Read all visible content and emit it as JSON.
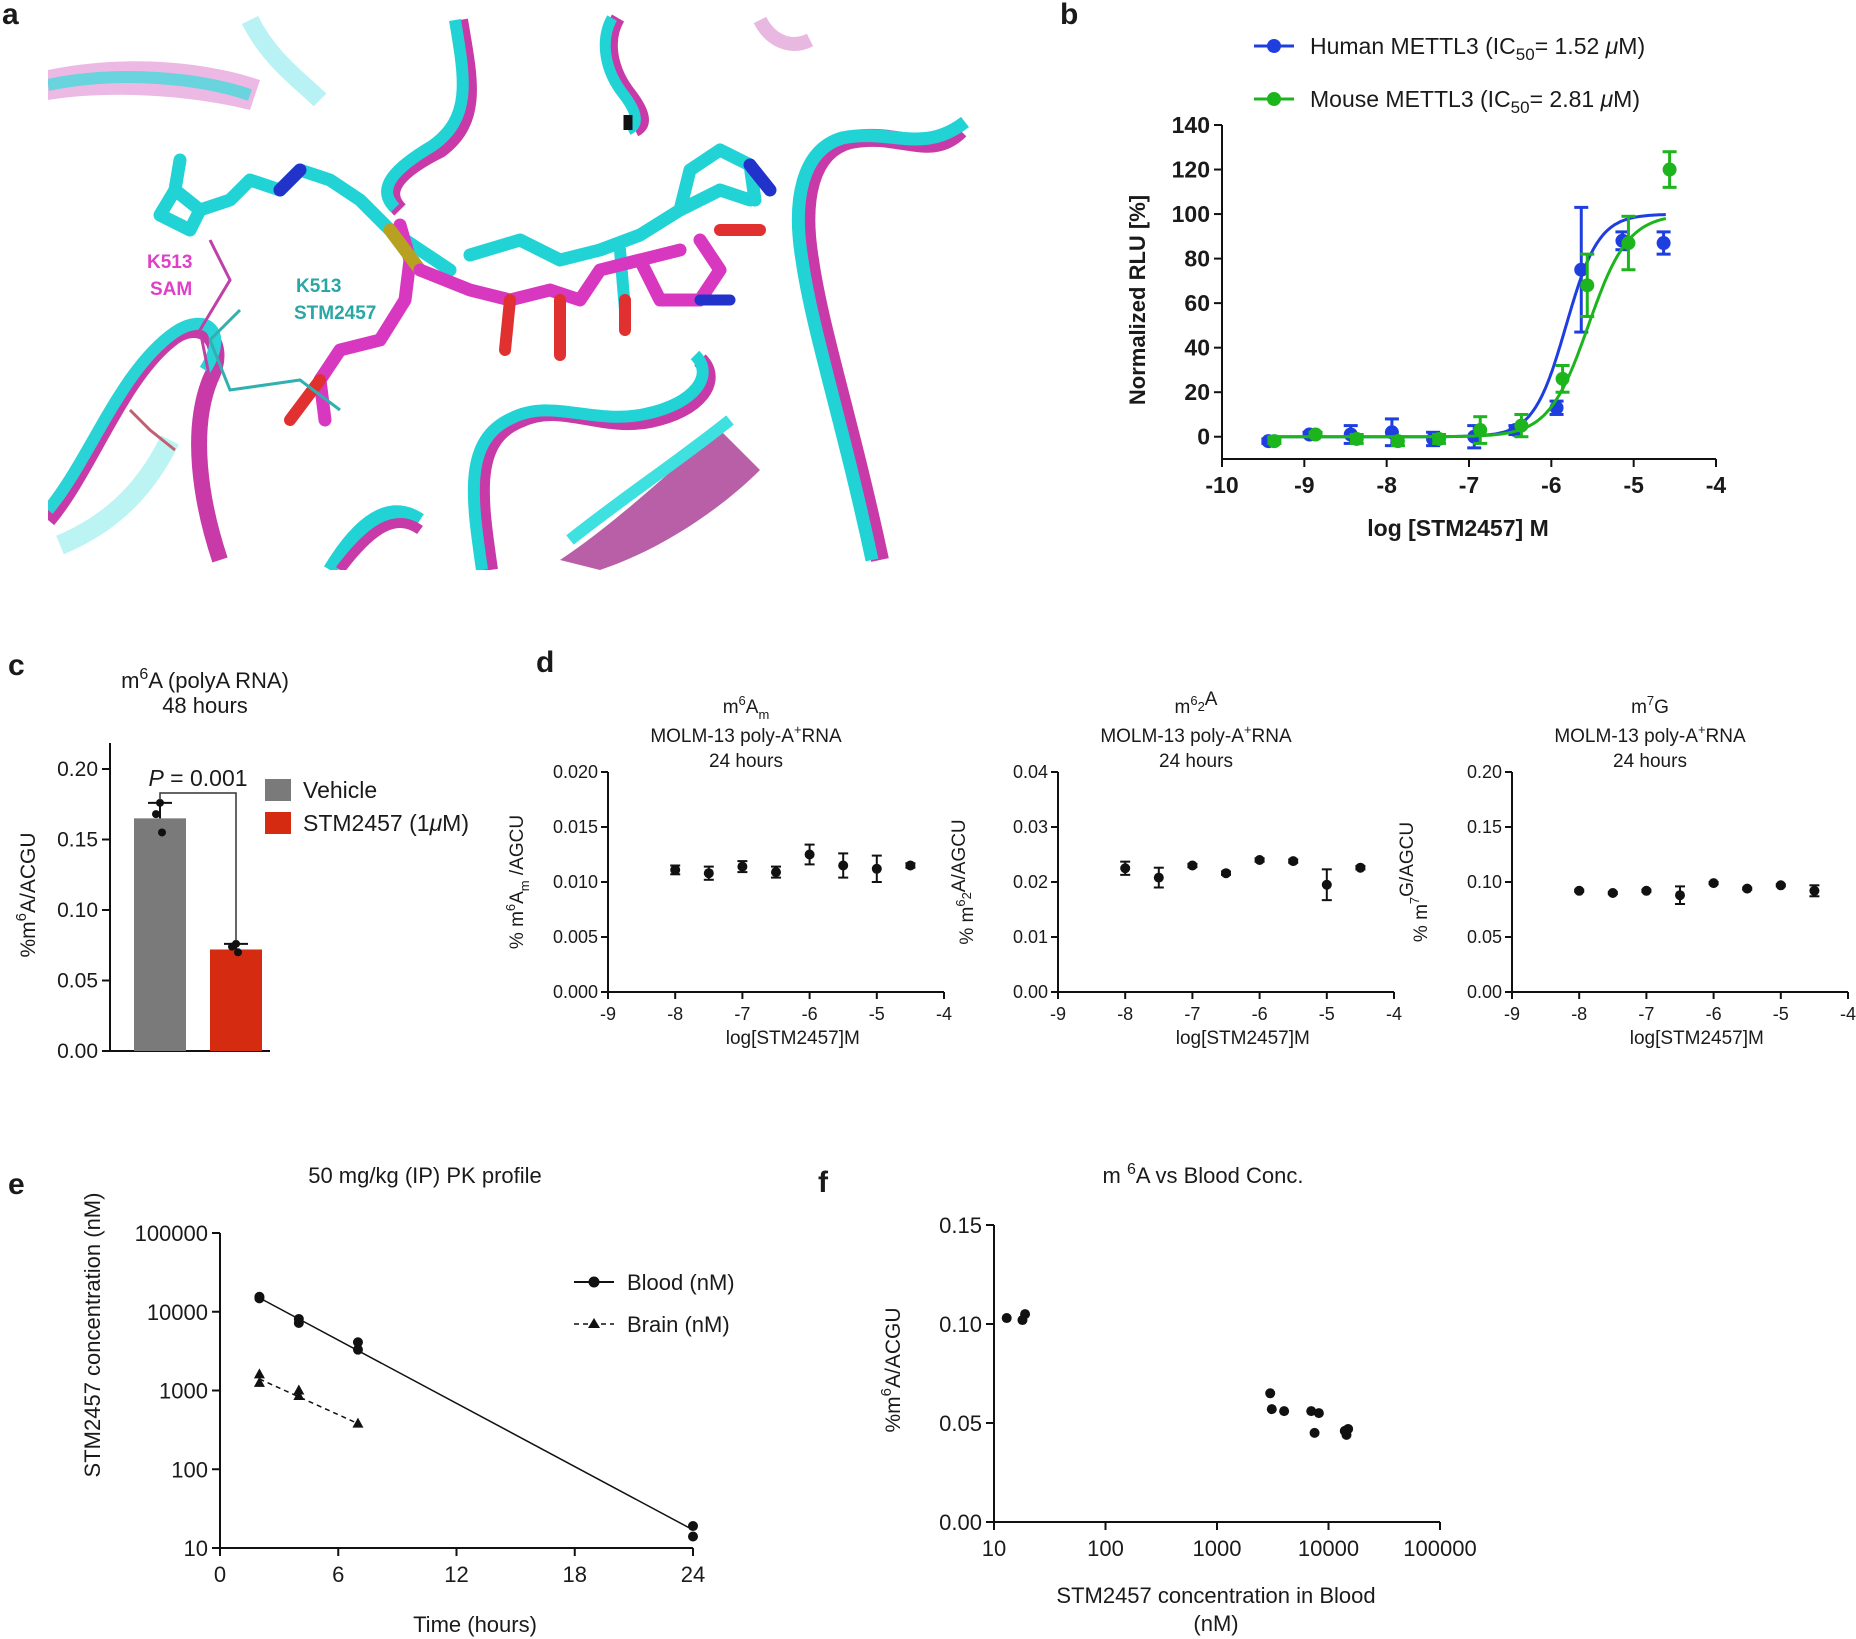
{
  "figure": {
    "panel_letters": {
      "a": "a",
      "b": "b",
      "c": "c",
      "d": "d",
      "e": "e",
      "f": "f"
    }
  },
  "structure_panel": {
    "labels": [
      {
        "id": "k513_sam_1",
        "text": "K513",
        "color": "#e040c8"
      },
      {
        "id": "k513_sam_2",
        "text": "SAM",
        "color": "#e040c8"
      },
      {
        "id": "k513_stm_1",
        "text": "K513",
        "color": "#2aa6a6"
      },
      {
        "id": "k513_stm_2",
        "text": "STM2457",
        "color": "#2aa6a6"
      }
    ],
    "colors": {
      "cyan": "#22d3d6",
      "magenta": "#d038b8",
      "background": "#ffffff"
    }
  },
  "chart_data": [
    {
      "id": "b",
      "type": "line",
      "xlabel": "log [STM2457] M",
      "ylabel": "Normalized RLU [%]",
      "xlim": [
        -10,
        -4
      ],
      "ylim": [
        -10,
        140
      ],
      "xticks": [
        -10,
        -9,
        -8,
        -7,
        -6,
        -5,
        -4
      ],
      "yticks": [
        0,
        20,
        40,
        60,
        80,
        100,
        120,
        140
      ],
      "legend": [
        {
          "pre": "Human METTL3 (IC",
          "sub": "50",
          "post": "= 1.52 ",
          "mu": "μ",
          "unit": "M)"
        },
        {
          "pre": "Mouse METTL3 (IC",
          "sub": "50",
          "post": "= 2.81 ",
          "mu": "μ",
          "unit": "M)"
        }
      ],
      "series": [
        {
          "name": "Human METTL3",
          "color": "#1f3ee0",
          "ic50_log": -5.82,
          "top": 100,
          "bottom": 0,
          "hill": 2.2,
          "x": [
            -9.4,
            -8.9,
            -8.4,
            -7.9,
            -7.4,
            -6.9,
            -6.4,
            -5.9,
            -5.6,
            -5.1,
            -4.6
          ],
          "y": [
            -2,
            1,
            1,
            2,
            -1,
            0,
            3,
            13,
            75,
            88,
            87
          ],
          "err": [
            1,
            1,
            4,
            6,
            3,
            5,
            2,
            3,
            28,
            4,
            5
          ]
        },
        {
          "name": "Mouse METTL3",
          "color": "#1db51d",
          "ic50_log": -5.55,
          "top": 100,
          "bottom": 0,
          "hill": 1.8,
          "x": [
            -9.4,
            -8.9,
            -8.4,
            -7.9,
            -7.4,
            -6.9,
            -6.4,
            -5.9,
            -5.6,
            -5.1,
            -4.6
          ],
          "y": [
            -2,
            1,
            -1,
            -2,
            -1,
            3,
            5,
            26,
            68,
            87,
            120
          ],
          "err": [
            1,
            1,
            2,
            2,
            2,
            6,
            5,
            6,
            14,
            12,
            8
          ]
        }
      ]
    },
    {
      "id": "c",
      "type": "bar",
      "title": {
        "pre": "m",
        "sup": "6",
        "post": "A (polyA RNA)",
        "line2": "48 hours"
      },
      "ylabel": {
        "pre": "%m",
        "sup": "6",
        "post": "A/ACGU"
      },
      "ylim": [
        0,
        0.2
      ],
      "yticks": [
        "0.00",
        "0.05",
        "0.10",
        "0.15",
        "0.20"
      ],
      "categories": [
        "Vehicle",
        "STM2457 (1μM)"
      ],
      "legend": [
        {
          "text": "Vehicle"
        },
        {
          "pre": "STM2457 (1",
          "mu": "μ",
          "post": "M)"
        }
      ],
      "colors": [
        "#7a7a7a",
        "#d42b11"
      ],
      "values": [
        0.165,
        0.072
      ],
      "err": [
        0.011,
        0.004
      ],
      "points": [
        [
          0.176,
          0.168,
          0.155
        ],
        [
          0.076,
          0.074,
          0.07
        ]
      ],
      "annotation": {
        "p": "P",
        "eq": " = 0.001"
      }
    },
    {
      "id": "d1",
      "type": "scatter",
      "title": {
        "l1pre": "m",
        "l1sup": "6",
        "l1mid": "A",
        "l1sub": "m",
        "l2pre": "MOLM-13 poly-A",
        "l2sup": "+",
        "l2post": "RNA",
        "l3": "24 hours"
      },
      "ylabel": {
        "pre": "% m",
        "sup": "6",
        "mid": "A",
        "sub": "m",
        "post": " /AGCU"
      },
      "xlabel": "log[STM2457]M",
      "xlim": [
        -9,
        -4
      ],
      "xticks": [
        "-9",
        "-8",
        "-7",
        "-6",
        "-5",
        "-4"
      ],
      "ylim": [
        0,
        0.02
      ],
      "yticks": [
        "0.000",
        "0.005",
        "0.010",
        "0.015",
        "0.020"
      ],
      "x": [
        -8,
        -7.5,
        -7,
        -6.5,
        -6,
        -5.5,
        -5,
        -4.5
      ],
      "y": [
        0.0111,
        0.0108,
        0.0114,
        0.0109,
        0.0125,
        0.0115,
        0.0112,
        0.0115
      ],
      "err": [
        0.0004,
        0.0006,
        0.0005,
        0.0005,
        0.0009,
        0.0011,
        0.0012,
        0.0002
      ]
    },
    {
      "id": "d2",
      "type": "scatter",
      "title": {
        "l1pre": "m",
        "l1sup": "6",
        "l1mid": "",
        "l1sub": "2",
        "l1post": "A",
        "l2pre": "MOLM-13 poly-A",
        "l2sup": "+",
        "l2post": "RNA",
        "l3": "24 hours"
      },
      "ylabel": {
        "pre": "% m",
        "sup": "6",
        "mid": "",
        "sub": "2",
        "post": "A/AGCU"
      },
      "xlabel": "log[STM2457]M",
      "xlim": [
        -9,
        -4
      ],
      "xticks": [
        "-9",
        "-8",
        "-7",
        "-6",
        "-5",
        "-4"
      ],
      "ylim": [
        0,
        0.04
      ],
      "yticks": [
        "0.00",
        "0.01",
        "0.02",
        "0.03",
        "0.04"
      ],
      "x": [
        -8,
        -7.5,
        -7,
        -6.5,
        -6,
        -5.5,
        -5,
        -4.5
      ],
      "y": [
        0.0225,
        0.0208,
        0.023,
        0.0216,
        0.024,
        0.0238,
        0.0195,
        0.0226
      ],
      "err": [
        0.0012,
        0.0018,
        0.0003,
        0.0003,
        0.0003,
        0.0003,
        0.0028,
        0.0003
      ]
    },
    {
      "id": "d3",
      "type": "scatter",
      "title": {
        "l1pre": "m",
        "l1sup": "7",
        "l1mid": "G",
        "l1sub": "",
        "l2pre": "MOLM-13 poly-A",
        "l2sup": "+",
        "l2post": "RNA",
        "l3": "24 hours"
      },
      "ylabel": {
        "pre": "% m",
        "sup": "7",
        "mid": "",
        "sub": "",
        "post": "G/AGCU"
      },
      "xlabel": "log[STM2457]M",
      "xlim": [
        -9,
        -4
      ],
      "xticks": [
        "-9",
        "-8",
        "-7",
        "-6",
        "-5",
        "-4"
      ],
      "ylim": [
        0,
        0.2
      ],
      "yticks": [
        "0.00",
        "0.05",
        "0.10",
        "0.15",
        "0.20"
      ],
      "x": [
        -8,
        -7.5,
        -7,
        -6.5,
        -6,
        -5.5,
        -5,
        -4.5
      ],
      "y": [
        0.092,
        0.09,
        0.092,
        0.088,
        0.099,
        0.094,
        0.097,
        0.092
      ],
      "err": [
        0.001,
        0.001,
        0.001,
        0.008,
        0.001,
        0.001,
        0.001,
        0.005
      ]
    },
    {
      "id": "e",
      "type": "line",
      "title": "50 mg/kg (IP) PK profile",
      "xlabel": "Time (hours)",
      "ylabel": "STM2457 concentration (nM)",
      "xlim": [
        0,
        24
      ],
      "xticks": [
        "0",
        "6",
        "12",
        "18",
        "24"
      ],
      "ylim_log": [
        10,
        100000
      ],
      "yticks": [
        "10",
        "100",
        "1000",
        "10000",
        "100000"
      ],
      "legend": [
        "Blood (nM)",
        "Brain (nM)"
      ],
      "series": [
        {
          "name": "Blood (nM)",
          "marker": "circle",
          "dashed": false,
          "points": [
            [
              2,
              15500
            ],
            [
              2,
              14800
            ],
            [
              4,
              8100
            ],
            [
              4,
              7200
            ],
            [
              7,
              4100
            ],
            [
              7,
              3300
            ],
            [
              24,
              19
            ],
            [
              24,
              14
            ]
          ],
          "fit": [
            [
              2,
              15000
            ],
            [
              24,
              17
            ]
          ]
        },
        {
          "name": "Brain (nM)",
          "marker": "triangle",
          "dashed": true,
          "points": [
            [
              2,
              1600
            ],
            [
              2,
              1250
            ],
            [
              4,
              1000
            ],
            [
              4,
              850
            ],
            [
              7,
              380
            ]
          ],
          "fit": [
            [
              2,
              1400
            ],
            [
              7,
              380
            ]
          ]
        }
      ]
    },
    {
      "id": "f",
      "type": "scatter",
      "title": {
        "pre": "m ",
        "sup": "6",
        "post": "A vs Blood Conc."
      },
      "xlabel": [
        "STM2457 concentration in Blood",
        "(nM)"
      ],
      "ylabel": {
        "pre": "%m",
        "sup": "6",
        "post": "A/ACGU"
      },
      "xlim_log": [
        10,
        100000
      ],
      "xticks": [
        "10",
        "100",
        "1000",
        "10000",
        "100000"
      ],
      "ylim": [
        0,
        0.15
      ],
      "yticks": [
        "0.00",
        "0.05",
        "0.10",
        "0.15"
      ],
      "points": [
        [
          13,
          0.103
        ],
        [
          18,
          0.102
        ],
        [
          19,
          0.105
        ],
        [
          3000,
          0.065
        ],
        [
          3100,
          0.057
        ],
        [
          4000,
          0.056
        ],
        [
          7000,
          0.056
        ],
        [
          7500,
          0.045
        ],
        [
          8200,
          0.055
        ],
        [
          14000,
          0.046
        ],
        [
          14500,
          0.044
        ],
        [
          15000,
          0.047
        ]
      ]
    }
  ]
}
